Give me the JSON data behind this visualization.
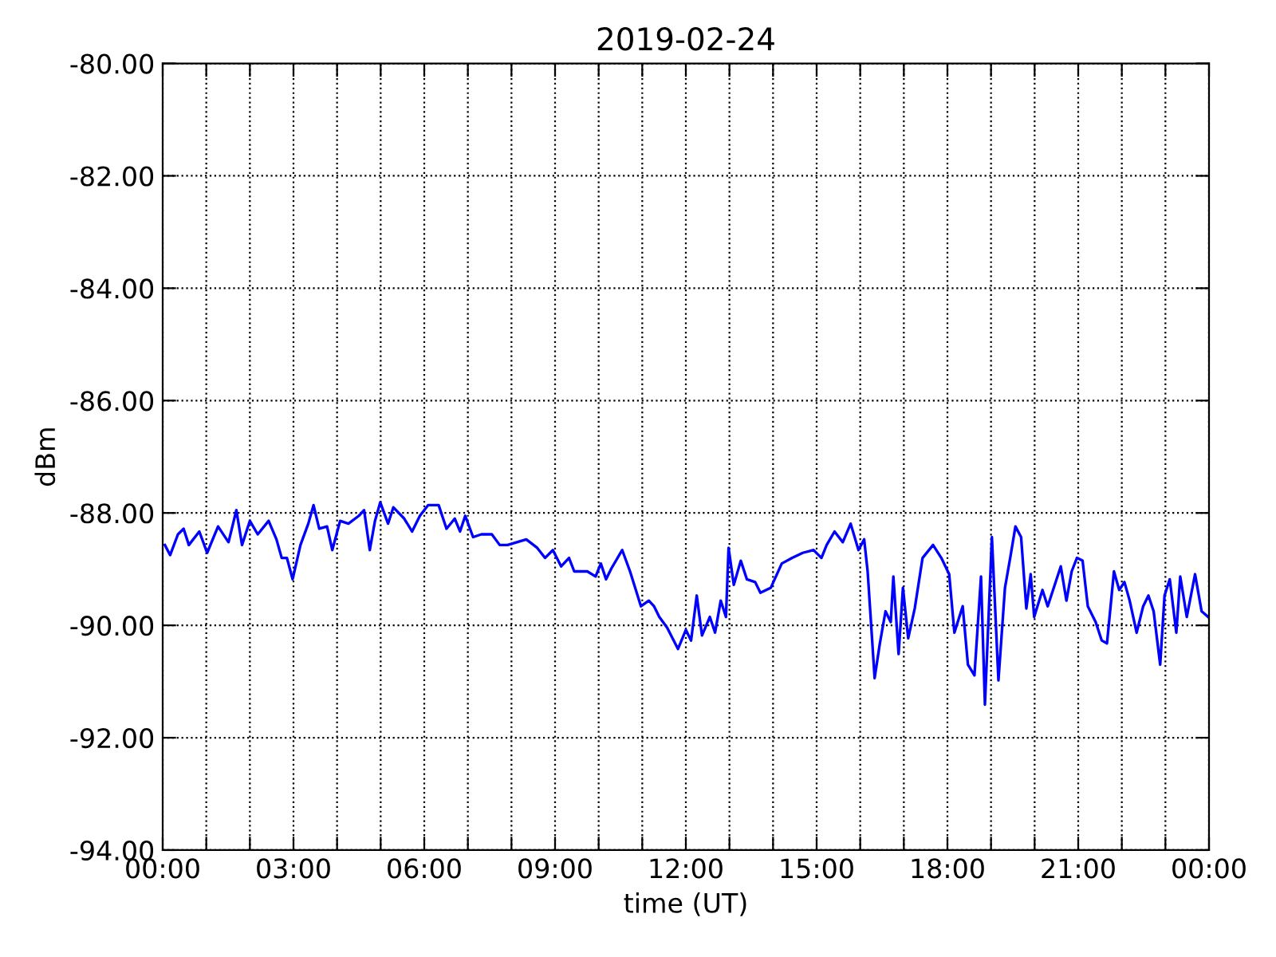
{
  "chart_data": {
    "type": "line",
    "title": "2019-02-24",
    "xlabel": "time (UT)",
    "ylabel": "dBm",
    "grid": true,
    "line_style": "solid",
    "marker": "none",
    "xlim": [
      0,
      24
    ],
    "xticks": [
      {
        "value": 0,
        "label": "00:00"
      },
      {
        "value": 1,
        "label": null
      },
      {
        "value": 2,
        "label": null
      },
      {
        "value": 3,
        "label": "03:00"
      },
      {
        "value": 4,
        "label": null
      },
      {
        "value": 5,
        "label": null
      },
      {
        "value": 6,
        "label": "06:00"
      },
      {
        "value": 7,
        "label": null
      },
      {
        "value": 8,
        "label": null
      },
      {
        "value": 9,
        "label": "09:00"
      },
      {
        "value": 10,
        "label": null
      },
      {
        "value": 11,
        "label": null
      },
      {
        "value": 12,
        "label": "12:00"
      },
      {
        "value": 13,
        "label": null
      },
      {
        "value": 14,
        "label": null
      },
      {
        "value": 15,
        "label": "15:00"
      },
      {
        "value": 16,
        "label": null
      },
      {
        "value": 17,
        "label": null
      },
      {
        "value": 18,
        "label": "18:00"
      },
      {
        "value": 19,
        "label": null
      },
      {
        "value": 20,
        "label": null
      },
      {
        "value": 21,
        "label": "21:00"
      },
      {
        "value": 22,
        "label": null
      },
      {
        "value": 23,
        "label": null
      },
      {
        "value": 24,
        "label": "00:00"
      }
    ],
    "ylim": [
      -94,
      -80
    ],
    "yticks": [
      {
        "value": -94,
        "label": "-94.00"
      },
      {
        "value": -92,
        "label": "-92.00"
      },
      {
        "value": -90,
        "label": "-90.00"
      },
      {
        "value": -88,
        "label": "-88.00"
      },
      {
        "value": -86,
        "label": "-86.00"
      },
      {
        "value": -84,
        "label": "-84.00"
      },
      {
        "value": -82,
        "label": "-82.00"
      },
      {
        "value": -80,
        "label": "-80.00"
      }
    ],
    "series": [
      {
        "color": "#0000ff",
        "x": [
          0.05,
          0.17,
          0.35,
          0.48,
          0.6,
          0.84,
          1.02,
          1.27,
          1.51,
          1.69,
          1.82,
          2.0,
          2.18,
          2.43,
          2.61,
          2.73,
          2.85,
          2.98,
          3.16,
          3.34,
          3.46,
          3.59,
          3.77,
          3.89,
          4.07,
          4.26,
          4.5,
          4.62,
          4.75,
          4.87,
          4.99,
          5.17,
          5.29,
          5.54,
          5.72,
          5.9,
          6.09,
          6.33,
          6.51,
          6.7,
          6.82,
          6.94,
          7.12,
          7.31,
          7.55,
          7.73,
          7.91,
          8.34,
          8.59,
          8.77,
          8.95,
          9.14,
          9.32,
          9.44,
          9.74,
          9.93,
          10.05,
          10.17,
          10.29,
          10.54,
          10.72,
          10.97,
          11.15,
          11.27,
          11.39,
          11.57,
          11.82,
          12.0,
          12.12,
          12.25,
          12.37,
          12.55,
          12.67,
          12.8,
          12.92,
          12.98,
          13.1,
          13.26,
          13.4,
          13.59,
          13.71,
          13.95,
          14.2,
          14.44,
          14.68,
          14.93,
          15.11,
          15.23,
          15.41,
          15.6,
          15.78,
          15.96,
          16.09,
          16.17,
          16.33,
          16.45,
          16.58,
          16.7,
          16.76,
          16.88,
          16.98,
          17.1,
          17.25,
          17.43,
          17.67,
          17.86,
          18.04,
          18.16,
          18.35,
          18.47,
          18.62,
          18.77,
          18.86,
          19.02,
          19.17,
          19.32,
          19.44,
          19.56,
          19.69,
          19.81,
          19.91,
          19.99,
          20.18,
          20.3,
          20.6,
          20.73,
          20.85,
          20.97,
          21.1,
          21.22,
          21.4,
          21.54,
          21.66,
          21.82,
          21.94,
          22.06,
          22.18,
          22.34,
          22.49,
          22.61,
          22.73,
          22.88,
          22.98,
          23.1,
          23.25,
          23.34,
          23.49,
          23.68,
          23.83,
          23.98
        ],
        "values": [
          -88.57,
          -88.75,
          -88.38,
          -88.28,
          -88.57,
          -88.33,
          -88.71,
          -88.24,
          -88.52,
          -87.95,
          -88.57,
          -88.14,
          -88.38,
          -88.14,
          -88.47,
          -88.8,
          -88.8,
          -89.18,
          -88.57,
          -88.19,
          -87.86,
          -88.28,
          -88.24,
          -88.66,
          -88.14,
          -88.19,
          -88.05,
          -87.95,
          -88.66,
          -88.14,
          -87.81,
          -88.19,
          -87.9,
          -88.1,
          -88.33,
          -88.05,
          -87.86,
          -87.86,
          -88.28,
          -88.1,
          -88.33,
          -88.05,
          -88.43,
          -88.38,
          -88.38,
          -88.57,
          -88.57,
          -88.47,
          -88.62,
          -88.8,
          -88.66,
          -88.95,
          -88.8,
          -89.04,
          -89.04,
          -89.13,
          -88.9,
          -89.18,
          -88.99,
          -88.66,
          -89.04,
          -89.66,
          -89.56,
          -89.66,
          -89.85,
          -90.04,
          -90.42,
          -90.08,
          -90.27,
          -89.47,
          -90.18,
          -89.85,
          -90.13,
          -89.56,
          -89.85,
          -88.62,
          -89.28,
          -88.85,
          -89.18,
          -89.23,
          -89.42,
          -89.33,
          -88.9,
          -88.8,
          -88.71,
          -88.66,
          -88.8,
          -88.57,
          -88.33,
          -88.52,
          -88.19,
          -88.66,
          -88.47,
          -89.04,
          -90.94,
          -90.32,
          -89.75,
          -89.94,
          -89.13,
          -90.51,
          -89.33,
          -90.23,
          -89.7,
          -88.8,
          -88.57,
          -88.8,
          -89.09,
          -90.13,
          -89.66,
          -90.7,
          -90.89,
          -89.13,
          -91.41,
          -88.43,
          -90.98,
          -89.33,
          -88.8,
          -88.24,
          -88.43,
          -89.7,
          -89.09,
          -89.85,
          -89.37,
          -89.66,
          -88.95,
          -89.56,
          -89.04,
          -88.8,
          -88.85,
          -89.66,
          -89.94,
          -90.27,
          -90.32,
          -89.04,
          -89.37,
          -89.23,
          -89.56,
          -90.13,
          -89.66,
          -89.47,
          -89.75,
          -90.7,
          -89.47,
          -89.18,
          -90.13,
          -89.13,
          -89.85,
          -89.09,
          -89.75,
          -89.85
        ]
      }
    ]
  }
}
